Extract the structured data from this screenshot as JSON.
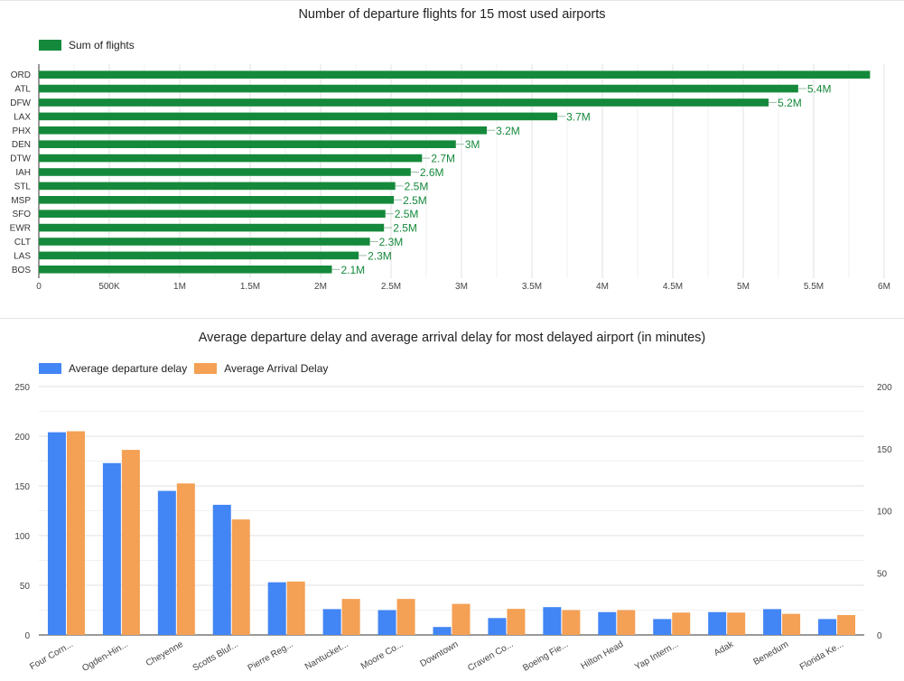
{
  "chart_data": [
    {
      "type": "bar",
      "orientation": "horizontal",
      "title": "Number of departure flights for 15 most used airports",
      "legend": {
        "position": "top-left",
        "entries": [
          "Sum of flights"
        ]
      },
      "categories": [
        "ORD",
        "ATL",
        "DFW",
        "LAX",
        "PHX",
        "DEN",
        "DTW",
        "IAH",
        "STL",
        "MSP",
        "SFO",
        "EWR",
        "CLT",
        "LAS",
        "BOS"
      ],
      "series": [
        {
          "name": "Sum of flights",
          "color": "#15893b",
          "values": [
            5900000,
            5390000,
            5180000,
            3680000,
            3180000,
            2960000,
            2720000,
            2640000,
            2530000,
            2520000,
            2460000,
            2450000,
            2350000,
            2270000,
            2080000
          ],
          "data_labels": [
            "",
            "5.4M",
            "5.2M",
            "3.7M",
            "3.2M",
            "3M",
            "2.7M",
            "2.6M",
            "2.5M",
            "2.5M",
            "2.5M",
            "2.5M",
            "2.3M",
            "2.3M",
            "2.1M"
          ]
        }
      ],
      "xlim": [
        0,
        6000000
      ],
      "x_ticks": [
        {
          "value": 0,
          "label": "0"
        },
        {
          "value": 500000,
          "label": "500K"
        },
        {
          "value": 1000000,
          "label": "1M"
        },
        {
          "value": 1500000,
          "label": "1.5M"
        },
        {
          "value": 2000000,
          "label": "2M"
        },
        {
          "value": 2500000,
          "label": "2.5M"
        },
        {
          "value": 3000000,
          "label": "3M"
        },
        {
          "value": 3500000,
          "label": "3.5M"
        },
        {
          "value": 4000000,
          "label": "4M"
        },
        {
          "value": 4500000,
          "label": "4.5M"
        },
        {
          "value": 5000000,
          "label": "5M"
        },
        {
          "value": 5500000,
          "label": "5.5M"
        },
        {
          "value": 6000000,
          "label": "6M"
        }
      ],
      "grid": true
    },
    {
      "type": "bar",
      "title": "Average departure delay and average arrival delay for most delayed airport (in minutes)",
      "legend": {
        "position": "top-left",
        "entries": [
          "Average departure delay",
          "Average Arrival Delay"
        ]
      },
      "categories": [
        "Four Corn...",
        "Ogden-Hin...",
        "Cheyenne",
        "Scotts Bluf...",
        "Pierre Reg...",
        "Nantucket...",
        "Moore Co...",
        "Downtown",
        "Craven Co...",
        "Boeing Fie...",
        "Hilton Head",
        "Yap Intern...",
        "Adak",
        "Benedum",
        "Florida Ke..."
      ],
      "series": [
        {
          "name": "Average departure delay",
          "color": "#4285f4",
          "axis": "left",
          "values": [
            204,
            173,
            145,
            131,
            53,
            26,
            25,
            8,
            17,
            28,
            23,
            16,
            23,
            26,
            16
          ]
        },
        {
          "name": "Average Arrival Delay",
          "color": "#f4a055",
          "axis": "right",
          "values": [
            164,
            149,
            122,
            93,
            43,
            29,
            29,
            25,
            21,
            20,
            20,
            18,
            18,
            17,
            16
          ]
        }
      ],
      "ylim_left": [
        0,
        250
      ],
      "ylim_right": [
        0,
        200
      ],
      "y_ticks_left": [
        "0",
        "50",
        "100",
        "150",
        "200",
        "250"
      ],
      "y_ticks_right": [
        "0",
        "50",
        "100",
        "150",
        "200"
      ],
      "grid": true
    }
  ]
}
